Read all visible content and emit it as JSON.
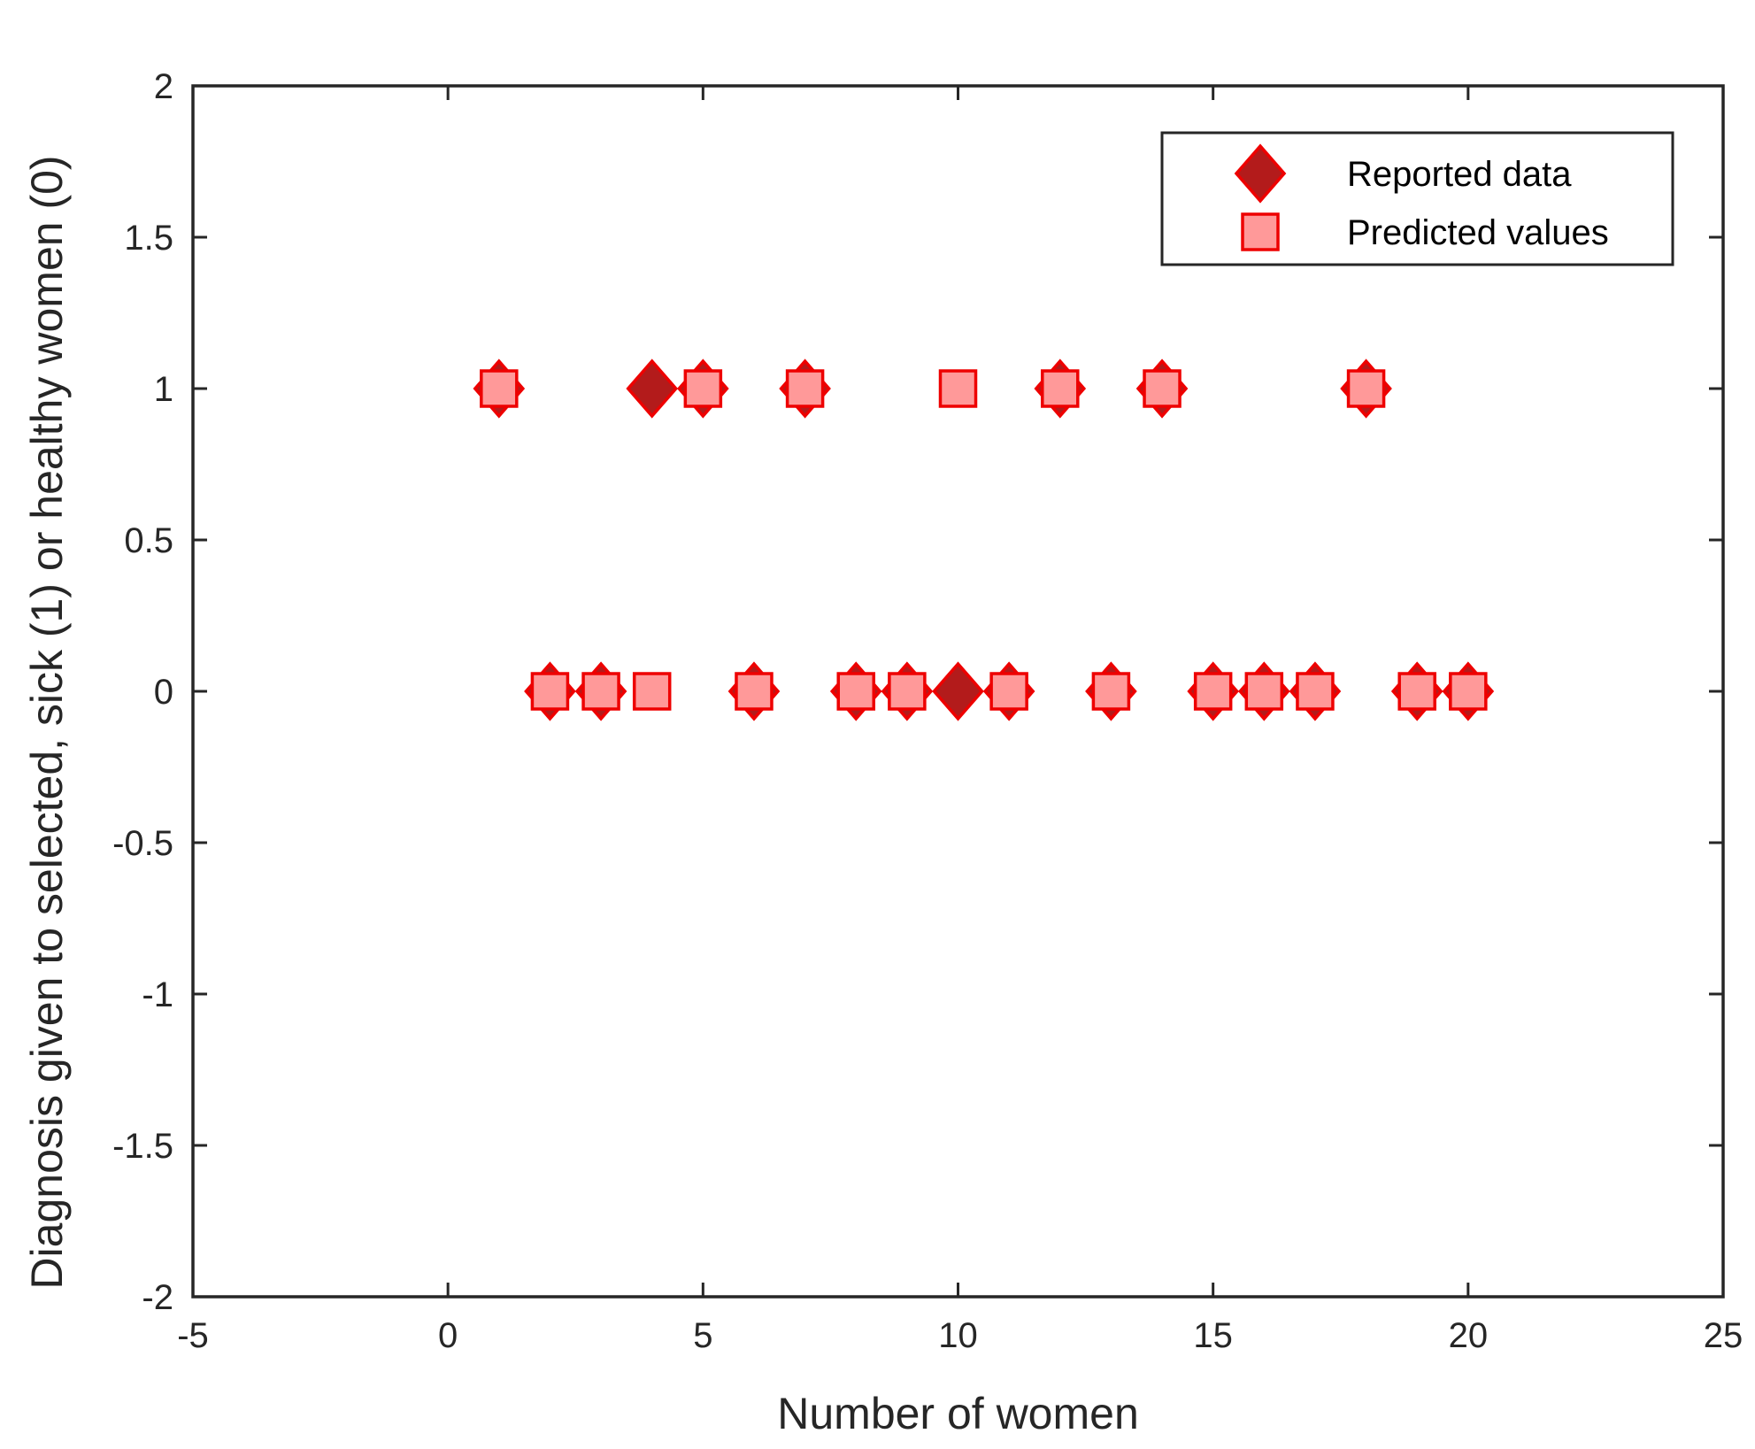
{
  "chart_data": {
    "type": "scatter",
    "title": "",
    "xlabel": "Number of women",
    "ylabel": "Diagnosis given to selected, sick (1) or healthy women (0)",
    "xlim": [
      -5,
      25
    ],
    "ylim": [
      -2,
      2
    ],
    "xticks": [
      -5,
      0,
      5,
      10,
      15,
      20,
      25
    ],
    "yticks": [
      -2,
      -1.5,
      -1,
      -0.5,
      0,
      0.5,
      1,
      1.5,
      2
    ],
    "xtick_labels": [
      "-5",
      "0",
      "5",
      "10",
      "15",
      "20",
      "25"
    ],
    "ytick_labels": [
      "-2",
      "-1.5",
      "-1",
      "-0.5",
      "0",
      "0.5",
      "1",
      "1.5",
      "2"
    ],
    "grid": false,
    "legend_position": "top-right",
    "series": [
      {
        "name": "Reported data",
        "marker": "diamond",
        "fill_color": "#b31b1b",
        "edge_color": "#ee0000",
        "x": [
          1,
          2,
          3,
          4,
          5,
          6,
          7,
          8,
          9,
          10,
          11,
          12,
          13,
          14,
          15,
          16,
          17,
          18,
          19,
          20
        ],
        "y": [
          1,
          0,
          0,
          1,
          1,
          0,
          1,
          0,
          0,
          0,
          0,
          1,
          0,
          1,
          0,
          0,
          0,
          1,
          0,
          0
        ]
      },
      {
        "name": "Predicted values",
        "marker": "square",
        "fill_color": "#ff9999",
        "edge_color": "#ee0000",
        "x": [
          1,
          2,
          3,
          4,
          5,
          6,
          7,
          8,
          9,
          10,
          11,
          12,
          13,
          14,
          15,
          16,
          17,
          18,
          19,
          20
        ],
        "y": [
          1,
          0,
          0,
          0,
          1,
          0,
          1,
          0,
          0,
          1,
          0,
          1,
          0,
          1,
          0,
          0,
          0,
          1,
          0,
          0
        ]
      }
    ]
  }
}
